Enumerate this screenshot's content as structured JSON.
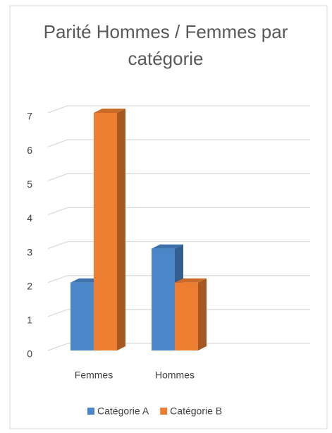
{
  "chart_data": {
    "type": "bar3d",
    "title": "Parité Hommes / Femmes par catégorie",
    "categories": [
      "Femmes",
      "Hommes"
    ],
    "series": [
      {
        "name": "Catégorie A",
        "color": "#4a86c8",
        "values": [
          2,
          3
        ]
      },
      {
        "name": "Catégorie B",
        "color": "#ed7d31",
        "values": [
          7,
          2
        ]
      }
    ],
    "ylim": [
      0,
      7
    ],
    "yticks": [
      0,
      1,
      2,
      3,
      4,
      5,
      6,
      7
    ],
    "grid": true,
    "legend": "bottom"
  }
}
